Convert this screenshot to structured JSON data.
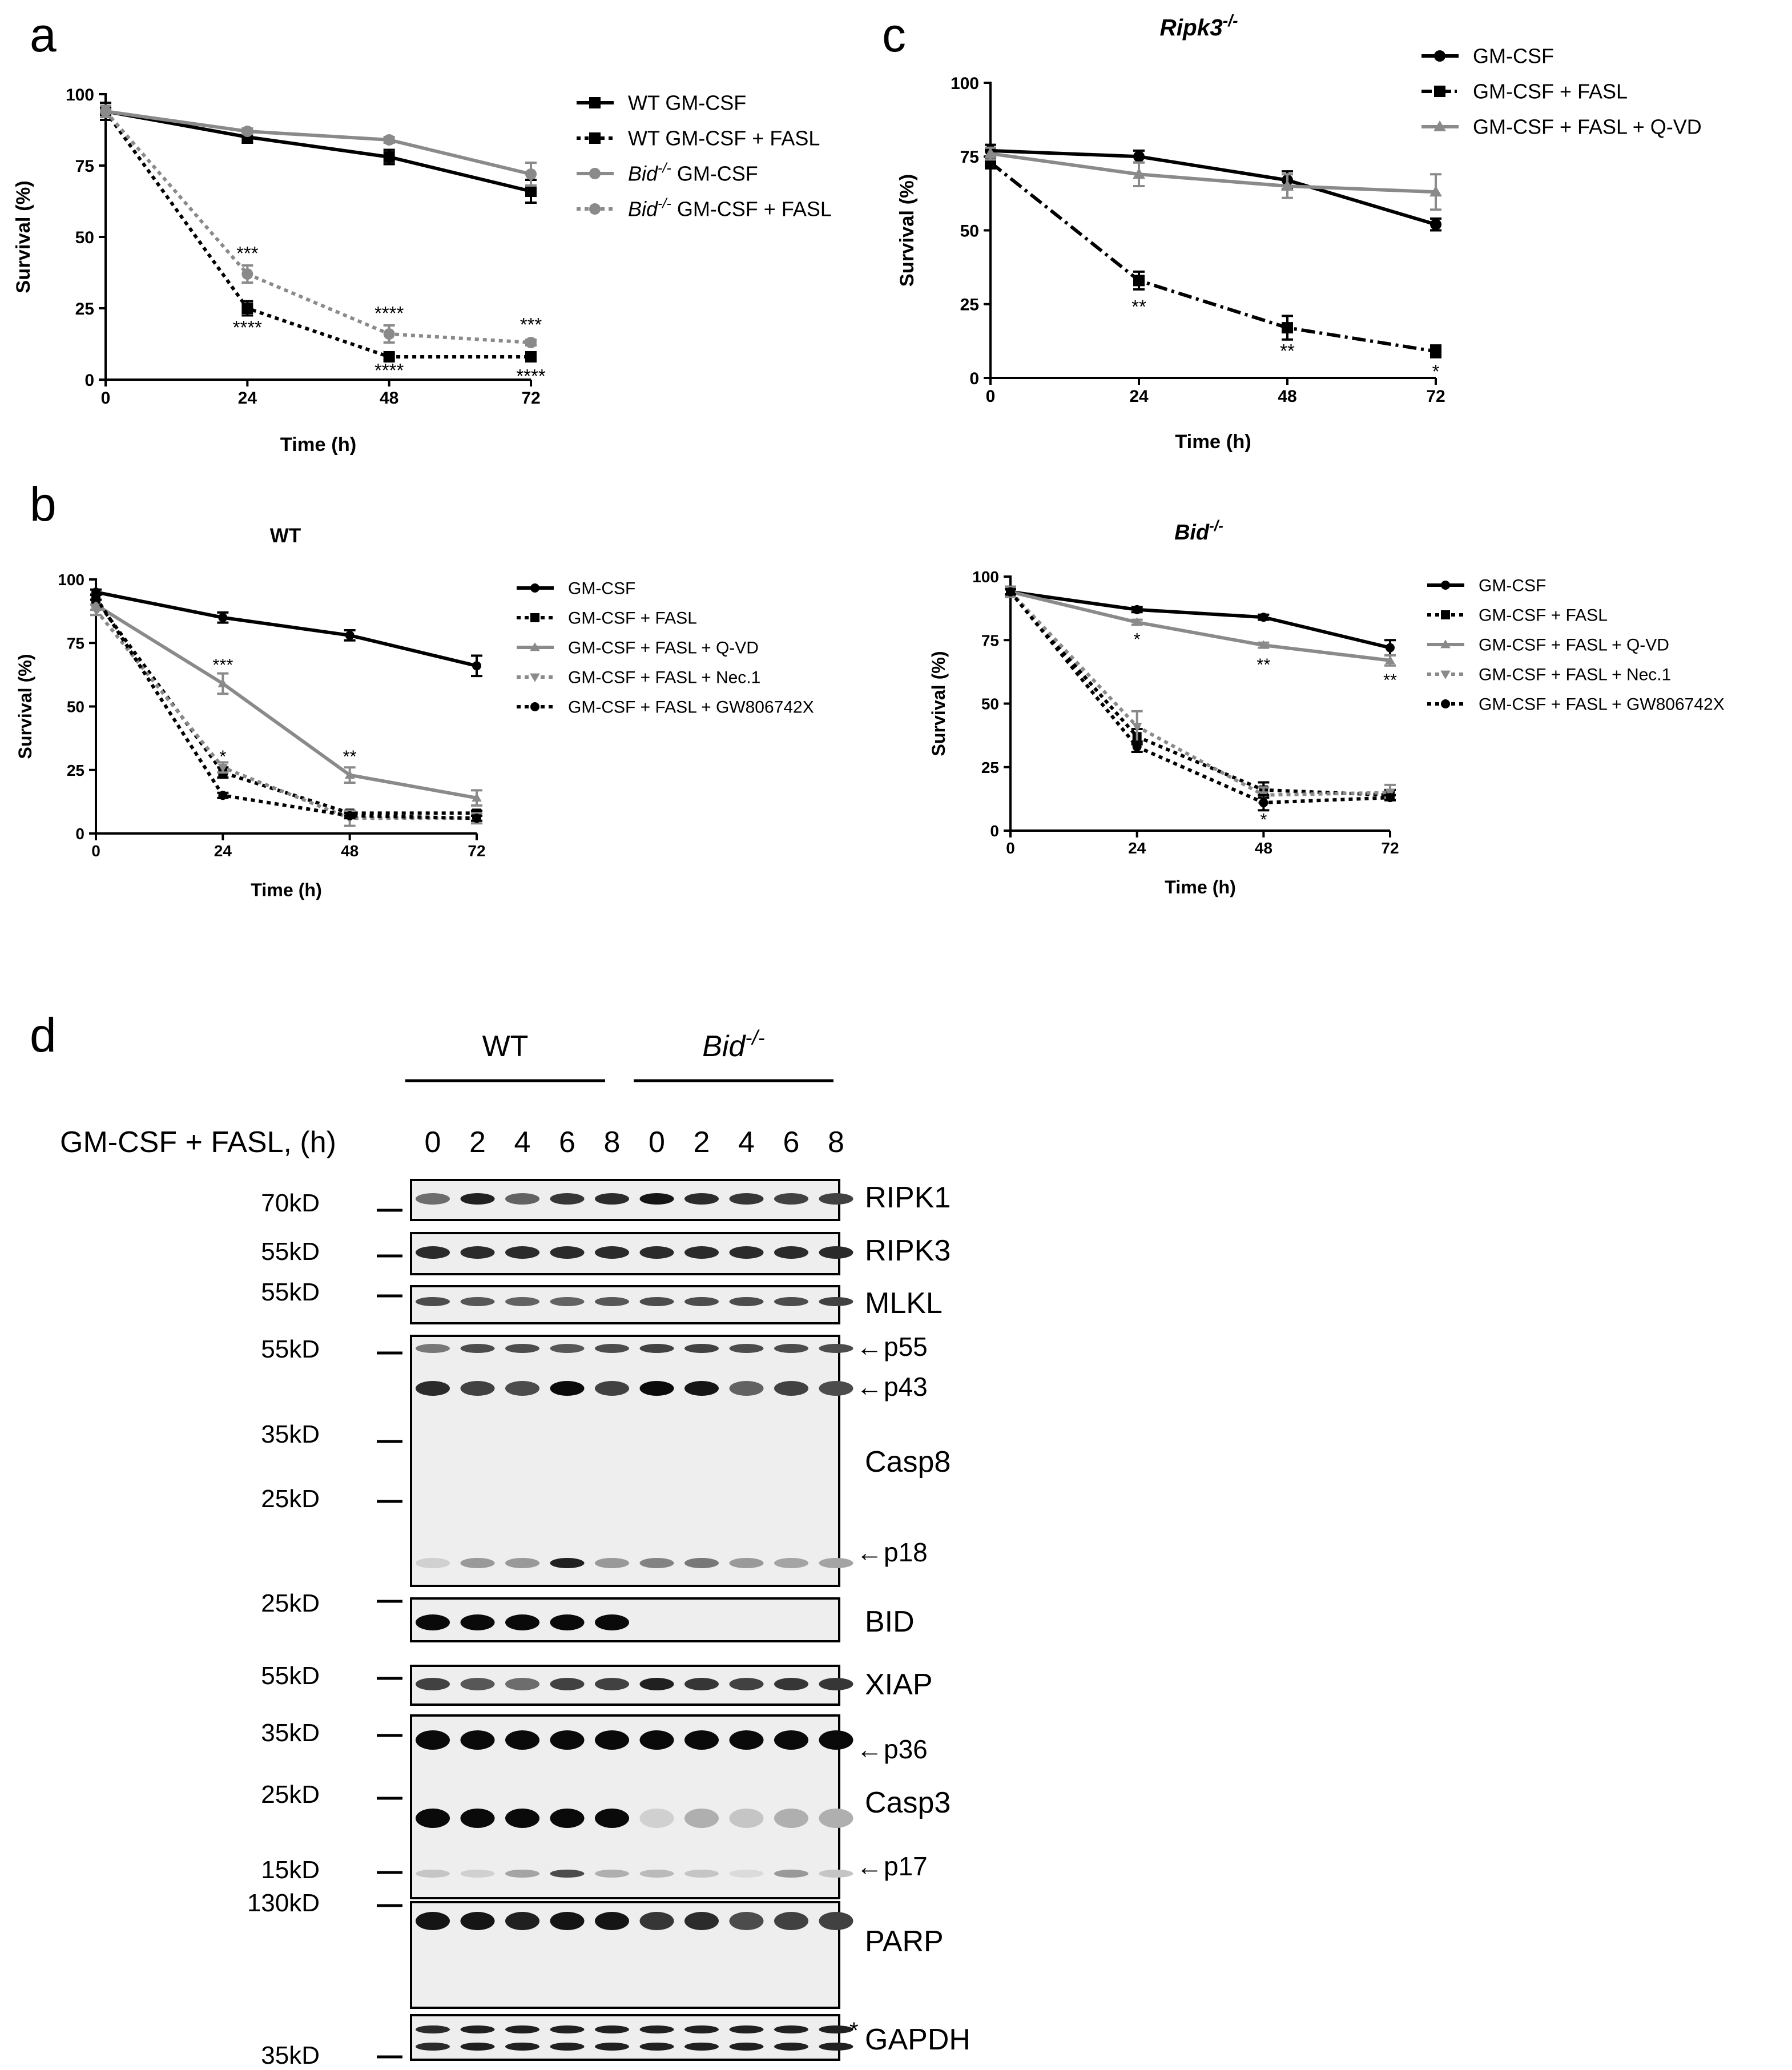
{
  "panels": {
    "a": {
      "letter": "a"
    },
    "b": {
      "letter": "b"
    },
    "c": {
      "letter": "c"
    },
    "d": {
      "letter": "d"
    }
  },
  "chart_data": [
    {
      "id": "a",
      "type": "line",
      "title": "",
      "title_italic": false,
      "xlabel": "Time (h)",
      "ylabel": "Survival (%)",
      "xlim": [
        0,
        72
      ],
      "ylim": [
        0,
        100
      ],
      "xticks": [
        0,
        24,
        48,
        72
      ],
      "yticks": [
        0,
        25,
        50,
        75,
        100
      ],
      "x": [
        0,
        24,
        48,
        72
      ],
      "series": [
        {
          "label_parts": [
            {
              "t": "WT GM-CSF",
              "i": false
            }
          ],
          "color": "#000000",
          "dashed": false,
          "marker": "square",
          "values": [
            94,
            85,
            78,
            66
          ],
          "err": [
            2,
            2,
            2.5,
            4
          ]
        },
        {
          "label_parts": [
            {
              "t": "WT GM-CSF + FASL",
              "i": false
            }
          ],
          "color": "#000000",
          "dashed": true,
          "marker": "square",
          "values": [
            94,
            25,
            8,
            8
          ],
          "err": [
            3,
            2.5,
            1,
            1
          ]
        },
        {
          "label_parts": [
            {
              "t": "Bid",
              "i": true
            },
            {
              "t": "-/-",
              "i": true,
              "sup": true
            },
            {
              "t": " GM-CSF",
              "i": false
            }
          ],
          "color": "#8a8a8a",
          "dashed": false,
          "marker": "circle",
          "values": [
            94,
            87,
            84,
            72
          ],
          "err": [
            2,
            1,
            1,
            4
          ]
        },
        {
          "label_parts": [
            {
              "t": "Bid",
              "i": true
            },
            {
              "t": "-/-",
              "i": true,
              "sup": true
            },
            {
              "t": " GM-CSF + FASL",
              "i": false
            }
          ],
          "color": "#8a8a8a",
          "dashed": true,
          "marker": "circle",
          "values": [
            94,
            37,
            16,
            13
          ],
          "err": [
            2,
            3,
            3,
            1
          ]
        }
      ],
      "annotations": [
        {
          "x": 24,
          "y": 42,
          "text": "***"
        },
        {
          "x": 24,
          "y": 16,
          "text": "****"
        },
        {
          "x": 48,
          "y": 21,
          "text": "****"
        },
        {
          "x": 48,
          "y": 1,
          "text": "****"
        },
        {
          "x": 72,
          "y": 17,
          "text": "***"
        },
        {
          "x": 72,
          "y": -1,
          "text": "****"
        }
      ]
    },
    {
      "id": "b1",
      "type": "line",
      "title": "WT",
      "title_italic": false,
      "xlabel": "Time (h)",
      "ylabel": "Survival (%)",
      "xlim": [
        0,
        72
      ],
      "ylim": [
        0,
        100
      ],
      "xticks": [
        0,
        24,
        48,
        72
      ],
      "yticks": [
        0,
        25,
        50,
        75,
        100
      ],
      "x": [
        0,
        24,
        48,
        72
      ],
      "series": [
        {
          "label_parts": [
            {
              "t": "GM-CSF",
              "i": false
            }
          ],
          "color": "#000000",
          "dashed": false,
          "marker": "circle",
          "values": [
            95,
            85,
            78,
            66
          ],
          "err": [
            1,
            2,
            2,
            4
          ]
        },
        {
          "label_parts": [
            {
              "t": "GM-CSF + FASL",
              "i": false
            }
          ],
          "color": "#000000",
          "dashed": true,
          "marker": "square",
          "values": [
            92,
            24,
            8,
            8
          ],
          "err": [
            2,
            2,
            1,
            1
          ]
        },
        {
          "label_parts": [
            {
              "t": "GM-CSF + FASL + Q-VD",
              "i": false
            }
          ],
          "color": "#8a8a8a",
          "dashed": false,
          "marker": "triangle",
          "values": [
            90,
            59,
            23,
            14
          ],
          "err": [
            2,
            4,
            3,
            3
          ]
        },
        {
          "label_parts": [
            {
              "t": "GM-CSF + FASL + Nec.1",
              "i": false
            }
          ],
          "color": "#8a8a8a",
          "dashed": true,
          "marker": "triangle-down",
          "values": [
            88,
            26,
            6,
            6
          ],
          "err": [
            2,
            2,
            3,
            2
          ]
        },
        {
          "label_parts": [
            {
              "t": "GM-CSF + FASL + GW806742X",
              "i": false
            }
          ],
          "color": "#000000",
          "dashed": true,
          "marker": "circle",
          "values": [
            93,
            15,
            7,
            6
          ],
          "err": [
            1,
            1,
            1,
            1
          ]
        }
      ],
      "annotations": [
        {
          "x": 24,
          "y": 64,
          "text": "***"
        },
        {
          "x": 24,
          "y": 28,
          "text": "*"
        },
        {
          "x": 48,
          "y": 28,
          "text": "**"
        }
      ]
    },
    {
      "id": "b2",
      "type": "line",
      "title": "Bid-/-",
      "title_parts": [
        {
          "t": "Bid",
          "i": true
        },
        {
          "t": "-/-",
          "i": true,
          "sup": true
        }
      ],
      "title_italic": true,
      "xlabel": "Time (h)",
      "ylabel": "Survival (%)",
      "xlim": [
        0,
        72
      ],
      "ylim": [
        0,
        100
      ],
      "xticks": [
        0,
        24,
        48,
        72
      ],
      "yticks": [
        0,
        25,
        50,
        75,
        100
      ],
      "x": [
        0,
        24,
        48,
        72
      ],
      "series": [
        {
          "label_parts": [
            {
              "t": "GM-CSF",
              "i": false
            }
          ],
          "color": "#000000",
          "dashed": false,
          "marker": "circle",
          "values": [
            94,
            87,
            84,
            72
          ],
          "err": [
            1,
            1,
            1,
            3
          ]
        },
        {
          "label_parts": [
            {
              "t": "GM-CSF + FASL",
              "i": false
            }
          ],
          "color": "#000000",
          "dashed": true,
          "marker": "square",
          "values": [
            94,
            37,
            16,
            14
          ],
          "err": [
            2,
            3,
            3,
            2
          ]
        },
        {
          "label_parts": [
            {
              "t": "GM-CSF + FASL + Q-VD",
              "i": false
            }
          ],
          "color": "#8a8a8a",
          "dashed": false,
          "marker": "triangle",
          "values": [
            94,
            82,
            73,
            67
          ],
          "err": [
            1,
            1,
            1,
            2
          ]
        },
        {
          "label_parts": [
            {
              "t": "GM-CSF + FASL + Nec.1",
              "i": false
            }
          ],
          "color": "#8a8a8a",
          "dashed": true,
          "marker": "triangle-down",
          "values": [
            94,
            41,
            14,
            15
          ],
          "err": [
            2,
            6,
            3,
            3
          ]
        },
        {
          "label_parts": [
            {
              "t": "GM-CSF + FASL + GW806742X",
              "i": false
            }
          ],
          "color": "#000000",
          "dashed": true,
          "marker": "circle",
          "values": [
            94,
            33,
            11,
            13
          ],
          "err": [
            1,
            2,
            3,
            1
          ]
        }
      ],
      "annotations": [
        {
          "x": 24,
          "y": 73,
          "text": "*"
        },
        {
          "x": 48,
          "y": 63,
          "text": "**"
        },
        {
          "x": 72,
          "y": 57,
          "text": "**"
        },
        {
          "x": 48,
          "y": 2,
          "text": "*"
        }
      ]
    },
    {
      "id": "c",
      "type": "line",
      "title": "Ripk3-/-",
      "title_parts": [
        {
          "t": "Ripk3",
          "i": true
        },
        {
          "t": "-/-",
          "i": true,
          "sup": true
        }
      ],
      "title_italic": true,
      "xlabel": "Time (h)",
      "ylabel": "Survival (%)",
      "xlim": [
        0,
        72
      ],
      "ylim": [
        0,
        100
      ],
      "xticks": [
        0,
        24,
        48,
        72
      ],
      "yticks": [
        0,
        25,
        50,
        75,
        100
      ],
      "x": [
        0,
        24,
        48,
        72
      ],
      "series": [
        {
          "label_parts": [
            {
              "t": "GM-CSF",
              "i": false
            }
          ],
          "color": "#000000",
          "dashed": false,
          "marker": "circle",
          "values": [
            77,
            75,
            67,
            52
          ],
          "err": [
            2,
            2,
            3,
            2
          ]
        },
        {
          "label_parts": [
            {
              "t": "GM-CSF + FASL",
              "i": false
            }
          ],
          "color": "#000000",
          "dashed": "dashdot",
          "marker": "square",
          "values": [
            73,
            33,
            17,
            9
          ],
          "err": [
            2,
            3,
            4,
            2
          ]
        },
        {
          "label_parts": [
            {
              "t": "GM-CSF + FASL + Q-VD",
              "i": false
            }
          ],
          "color": "#8a8a8a",
          "dashed": false,
          "marker": "triangle",
          "values": [
            76,
            69,
            65,
            63
          ],
          "err": [
            2,
            4,
            4,
            6
          ]
        }
      ],
      "annotations": [
        {
          "x": 24,
          "y": 22,
          "text": "**"
        },
        {
          "x": 48,
          "y": 7,
          "text": "**"
        },
        {
          "x": 72,
          "y": 0,
          "text": "*"
        }
      ]
    }
  ],
  "blot": {
    "treatment_label": "GM-CSF + FASL, (h)",
    "groups": [
      {
        "parts": [
          {
            "t": "WT",
            "i": false
          }
        ]
      },
      {
        "parts": [
          {
            "t": "Bid",
            "i": true
          },
          {
            "t": "-/-",
            "i": true,
            "sup": true
          }
        ]
      }
    ],
    "timepoints": [
      "0",
      "2",
      "4",
      "6",
      "8",
      "0",
      "2",
      "4",
      "6",
      "8"
    ],
    "markers": [
      "70kD",
      "55kD",
      "55kD",
      "55kD",
      "35kD",
      "25kD",
      "25kD",
      "55kD",
      "35kD",
      "25kD",
      "15kD",
      "130kD",
      "35kD"
    ],
    "labels": [
      "RIPK1",
      "RIPK3",
      "MLKL",
      "p55",
      "p43",
      "Casp8",
      "p18",
      "BID",
      "XIAP",
      "p36",
      "Casp3",
      "p17",
      "PARP",
      "GAPDH"
    ],
    "arrow_glyph": "←",
    "gapdh_asterisk": "*",
    "band_intensity": {
      "RIPK1": [
        0.55,
        0.9,
        0.6,
        0.8,
        0.85,
        0.95,
        0.85,
        0.8,
        0.75,
        0.75
      ],
      "RIPK3": [
        0.85,
        0.85,
        0.85,
        0.85,
        0.85,
        0.85,
        0.85,
        0.85,
        0.85,
        0.85
      ],
      "MLKL": [
        0.7,
        0.65,
        0.6,
        0.6,
        0.65,
        0.7,
        0.7,
        0.7,
        0.7,
        0.75
      ],
      "Casp8_p55": [
        0.5,
        0.7,
        0.7,
        0.65,
        0.7,
        0.75,
        0.75,
        0.7,
        0.7,
        0.7
      ],
      "Casp8_p43": [
        0.85,
        0.75,
        0.7,
        1.0,
        0.75,
        1.0,
        0.95,
        0.6,
        0.75,
        0.7
      ],
      "Casp8_p18": [
        0.1,
        0.35,
        0.35,
        0.9,
        0.35,
        0.45,
        0.5,
        0.35,
        0.3,
        0.3
      ],
      "BID": [
        1.0,
        1.0,
        1.0,
        1.0,
        1.0,
        0,
        0,
        0,
        0,
        0
      ],
      "XIAP": [
        0.75,
        0.65,
        0.55,
        0.75,
        0.75,
        0.9,
        0.8,
        0.75,
        0.8,
        0.8
      ],
      "Casp3_p36": [
        1.0,
        1.0,
        1.0,
        1.0,
        1.0,
        1.0,
        1.0,
        1.0,
        1.0,
        1.0
      ],
      "Casp3_p19": [
        1.0,
        1.0,
        1.0,
        1.0,
        1.0,
        0.1,
        0.25,
        0.15,
        0.25,
        0.25
      ],
      "Casp3_p17": [
        0.15,
        0.1,
        0.3,
        0.7,
        0.25,
        0.2,
        0.15,
        0.05,
        0.35,
        0.15
      ],
      "PARP": [
        0.95,
        0.95,
        0.9,
        0.95,
        0.95,
        0.8,
        0.85,
        0.7,
        0.75,
        0.75
      ],
      "GAPDH": [
        0.85,
        0.9,
        0.9,
        0.9,
        0.9,
        0.9,
        0.9,
        0.9,
        0.9,
        0.9
      ]
    }
  }
}
